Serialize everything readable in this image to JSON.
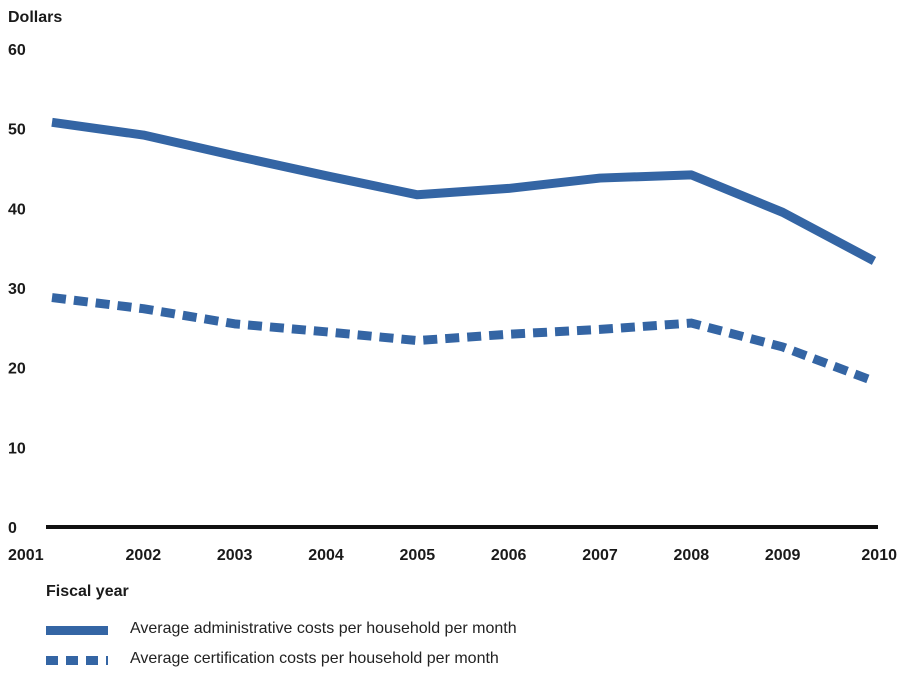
{
  "chart_data": {
    "type": "line",
    "ylabel": "Dollars",
    "xlabel": "Fiscal year",
    "ylim": [
      0,
      60
    ],
    "yticks": [
      0,
      10,
      20,
      30,
      40,
      50,
      60
    ],
    "x": [
      "2001",
      "2002",
      "2003",
      "2004",
      "2005",
      "2006",
      "2007",
      "2008",
      "2009",
      "2010"
    ],
    "series": [
      {
        "name": "Average administrative costs per household per month",
        "style": "solid",
        "color": "#3465a4",
        "values": [
          50.8,
          49.2,
          46.6,
          44.1,
          41.7,
          42.5,
          43.8,
          44.2,
          39.5,
          33.4
        ]
      },
      {
        "name": "Average certification costs per household per month",
        "style": "dashed",
        "color": "#3465a4",
        "values": [
          28.8,
          27.4,
          25.5,
          24.5,
          23.4,
          24.2,
          24.8,
          25.6,
          22.6,
          18.3
        ]
      }
    ],
    "grid": false,
    "legend_position": "bottom-left"
  }
}
